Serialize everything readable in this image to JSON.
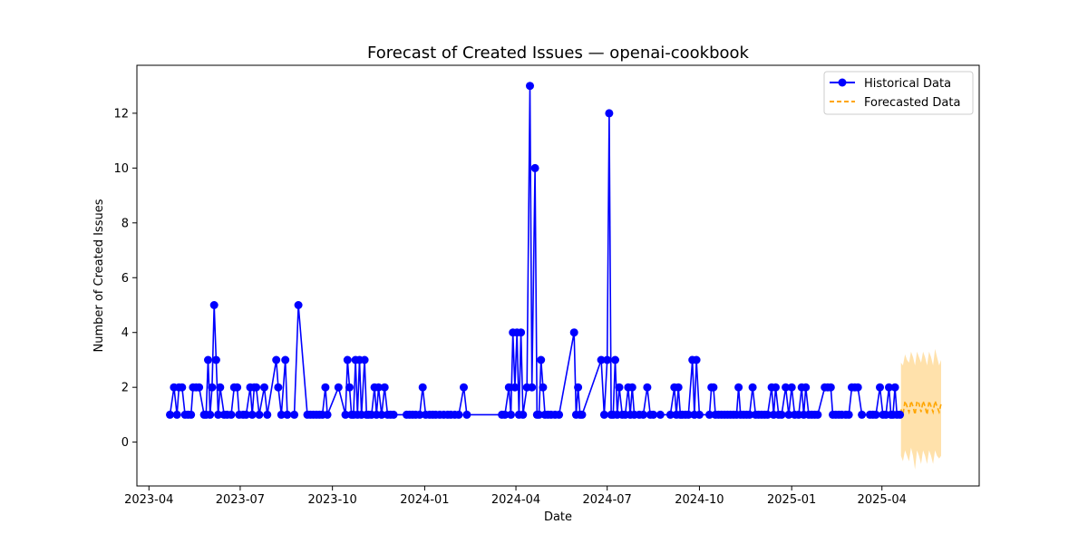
{
  "chart_data": {
    "type": "line",
    "title": "Forecast of Created Issues — openai-cookbook",
    "xlabel": "Date",
    "ylabel": "Number of Created Issues",
    "xlim": [
      "2023-03-20",
      "2025-07-07"
    ],
    "ylim": [
      -1.6,
      13.75
    ],
    "x_ticks": [
      {
        "date": "2023-04-01",
        "label": "2023-04"
      },
      {
        "date": "2023-07-01",
        "label": "2023-07"
      },
      {
        "date": "2023-10-01",
        "label": "2023-10"
      },
      {
        "date": "2024-01-01",
        "label": "2024-01"
      },
      {
        "date": "2024-04-01",
        "label": "2024-04"
      },
      {
        "date": "2024-07-01",
        "label": "2024-07"
      },
      {
        "date": "2024-10-01",
        "label": "2024-10"
      },
      {
        "date": "2025-01-01",
        "label": "2025-01"
      },
      {
        "date": "2025-04-01",
        "label": "2025-04"
      }
    ],
    "y_ticks": [
      0,
      2,
      4,
      6,
      8,
      10,
      12
    ],
    "grid": false,
    "legend": "top-right",
    "series": [
      {
        "name": "Historical Data",
        "style": "line-marker",
        "color": "#0000ff",
        "points": [
          [
            "2023-04-22",
            1
          ],
          [
            "2023-04-26",
            2
          ],
          [
            "2023-04-29",
            1
          ],
          [
            "2023-05-01",
            2
          ],
          [
            "2023-05-04",
            2
          ],
          [
            "2023-05-07",
            1
          ],
          [
            "2023-05-10",
            1
          ],
          [
            "2023-05-13",
            1
          ],
          [
            "2023-05-15",
            2
          ],
          [
            "2023-05-18",
            2
          ],
          [
            "2023-05-21",
            2
          ],
          [
            "2023-05-26",
            1
          ],
          [
            "2023-05-28",
            1
          ],
          [
            "2023-05-30",
            3
          ],
          [
            "2023-06-01",
            1
          ],
          [
            "2023-06-03",
            2
          ],
          [
            "2023-06-05",
            5
          ],
          [
            "2023-06-07",
            3
          ],
          [
            "2023-06-09",
            1
          ],
          [
            "2023-06-11",
            2
          ],
          [
            "2023-06-15",
            1
          ],
          [
            "2023-06-18",
            1
          ],
          [
            "2023-06-22",
            1
          ],
          [
            "2023-06-25",
            2
          ],
          [
            "2023-06-28",
            2
          ],
          [
            "2023-06-30",
            1
          ],
          [
            "2023-07-04",
            1
          ],
          [
            "2023-07-07",
            1
          ],
          [
            "2023-07-11",
            2
          ],
          [
            "2023-07-13",
            1
          ],
          [
            "2023-07-15",
            2
          ],
          [
            "2023-07-17",
            2
          ],
          [
            "2023-07-20",
            1
          ],
          [
            "2023-07-25",
            2
          ],
          [
            "2023-07-28",
            1
          ],
          [
            "2023-08-06",
            3
          ],
          [
            "2023-08-08",
            2
          ],
          [
            "2023-08-11",
            1
          ],
          [
            "2023-08-15",
            3
          ],
          [
            "2023-08-17",
            1
          ],
          [
            "2023-08-24",
            1
          ],
          [
            "2023-08-28",
            5
          ],
          [
            "2023-09-06",
            1
          ],
          [
            "2023-09-09",
            1
          ],
          [
            "2023-09-12",
            1
          ],
          [
            "2023-09-15",
            1
          ],
          [
            "2023-09-18",
            1
          ],
          [
            "2023-09-21",
            1
          ],
          [
            "2023-09-24",
            2
          ],
          [
            "2023-09-26",
            1
          ],
          [
            "2023-10-07",
            2
          ],
          [
            "2023-10-14",
            1
          ],
          [
            "2023-10-16",
            3
          ],
          [
            "2023-10-18",
            2
          ],
          [
            "2023-10-20",
            1
          ],
          [
            "2023-10-22",
            1
          ],
          [
            "2023-10-24",
            3
          ],
          [
            "2023-10-26",
            1
          ],
          [
            "2023-10-28",
            3
          ],
          [
            "2023-10-30",
            1
          ],
          [
            "2023-11-02",
            3
          ],
          [
            "2023-11-04",
            1
          ],
          [
            "2023-11-06",
            1
          ],
          [
            "2023-11-09",
            1
          ],
          [
            "2023-11-12",
            2
          ],
          [
            "2023-11-14",
            1
          ],
          [
            "2023-11-16",
            2
          ],
          [
            "2023-11-19",
            1
          ],
          [
            "2023-11-22",
            2
          ],
          [
            "2023-11-25",
            1
          ],
          [
            "2023-11-28",
            1
          ],
          [
            "2023-12-01",
            1
          ],
          [
            "2023-12-14",
            1
          ],
          [
            "2023-12-17",
            1
          ],
          [
            "2023-12-20",
            1
          ],
          [
            "2023-12-23",
            1
          ],
          [
            "2023-12-27",
            1
          ],
          [
            "2023-12-30",
            2
          ],
          [
            "2024-01-02",
            1
          ],
          [
            "2024-01-06",
            1
          ],
          [
            "2024-01-09",
            1
          ],
          [
            "2024-01-12",
            1
          ],
          [
            "2024-01-16",
            1
          ],
          [
            "2024-01-20",
            1
          ],
          [
            "2024-01-24",
            1
          ],
          [
            "2024-01-27",
            1
          ],
          [
            "2024-01-31",
            1
          ],
          [
            "2024-02-04",
            1
          ],
          [
            "2024-02-09",
            2
          ],
          [
            "2024-02-12",
            1
          ],
          [
            "2024-03-18",
            1
          ],
          [
            "2024-03-21",
            1
          ],
          [
            "2024-03-25",
            2
          ],
          [
            "2024-03-27",
            1
          ],
          [
            "2024-03-29",
            4
          ],
          [
            "2024-03-31",
            2
          ],
          [
            "2024-04-02",
            4
          ],
          [
            "2024-04-04",
            1
          ],
          [
            "2024-04-06",
            4
          ],
          [
            "2024-04-08",
            1
          ],
          [
            "2024-04-12",
            2
          ],
          [
            "2024-04-15",
            13
          ],
          [
            "2024-04-17",
            2
          ],
          [
            "2024-04-20",
            10
          ],
          [
            "2024-04-22",
            1
          ],
          [
            "2024-04-24",
            1
          ],
          [
            "2024-04-26",
            3
          ],
          [
            "2024-04-28",
            2
          ],
          [
            "2024-04-30",
            1
          ],
          [
            "2024-05-03",
            1
          ],
          [
            "2024-05-06",
            1
          ],
          [
            "2024-05-10",
            1
          ],
          [
            "2024-05-14",
            1
          ],
          [
            "2024-05-29",
            4
          ],
          [
            "2024-05-31",
            1
          ],
          [
            "2024-06-02",
            2
          ],
          [
            "2024-06-04",
            1
          ],
          [
            "2024-06-06",
            1
          ],
          [
            "2024-06-25",
            3
          ],
          [
            "2024-06-28",
            1
          ],
          [
            "2024-07-01",
            3
          ],
          [
            "2024-07-03",
            12
          ],
          [
            "2024-07-05",
            1
          ],
          [
            "2024-07-07",
            1
          ],
          [
            "2024-07-09",
            3
          ],
          [
            "2024-07-11",
            1
          ],
          [
            "2024-07-13",
            2
          ],
          [
            "2024-07-16",
            1
          ],
          [
            "2024-07-19",
            1
          ],
          [
            "2024-07-22",
            2
          ],
          [
            "2024-07-24",
            1
          ],
          [
            "2024-07-26",
            2
          ],
          [
            "2024-07-28",
            1
          ],
          [
            "2024-08-02",
            1
          ],
          [
            "2024-08-06",
            1
          ],
          [
            "2024-08-10",
            2
          ],
          [
            "2024-08-13",
            1
          ],
          [
            "2024-08-16",
            1
          ],
          [
            "2024-08-23",
            1
          ],
          [
            "2024-09-02",
            1
          ],
          [
            "2024-09-06",
            2
          ],
          [
            "2024-09-08",
            1
          ],
          [
            "2024-09-10",
            2
          ],
          [
            "2024-09-12",
            1
          ],
          [
            "2024-09-14",
            1
          ],
          [
            "2024-09-17",
            1
          ],
          [
            "2024-09-20",
            1
          ],
          [
            "2024-09-24",
            3
          ],
          [
            "2024-09-26",
            1
          ],
          [
            "2024-09-28",
            3
          ],
          [
            "2024-10-01",
            1
          ],
          [
            "2024-10-11",
            1
          ],
          [
            "2024-10-13",
            2
          ],
          [
            "2024-10-15",
            2
          ],
          [
            "2024-10-17",
            1
          ],
          [
            "2024-10-20",
            1
          ],
          [
            "2024-10-23",
            1
          ],
          [
            "2024-10-26",
            1
          ],
          [
            "2024-10-29",
            1
          ],
          [
            "2024-11-01",
            1
          ],
          [
            "2024-11-04",
            1
          ],
          [
            "2024-11-07",
            1
          ],
          [
            "2024-11-09",
            2
          ],
          [
            "2024-11-11",
            1
          ],
          [
            "2024-11-14",
            1
          ],
          [
            "2024-11-17",
            1
          ],
          [
            "2024-11-20",
            1
          ],
          [
            "2024-11-23",
            2
          ],
          [
            "2024-11-26",
            1
          ],
          [
            "2024-11-29",
            1
          ],
          [
            "2024-12-02",
            1
          ],
          [
            "2024-12-05",
            1
          ],
          [
            "2024-12-08",
            1
          ],
          [
            "2024-12-12",
            2
          ],
          [
            "2024-12-14",
            1
          ],
          [
            "2024-12-16",
            2
          ],
          [
            "2024-12-19",
            1
          ],
          [
            "2024-12-22",
            1
          ],
          [
            "2024-12-26",
            2
          ],
          [
            "2024-12-29",
            1
          ],
          [
            "2025-01-01",
            2
          ],
          [
            "2025-01-04",
            1
          ],
          [
            "2025-01-08",
            1
          ],
          [
            "2025-01-11",
            2
          ],
          [
            "2025-01-13",
            1
          ],
          [
            "2025-01-15",
            2
          ],
          [
            "2025-01-18",
            1
          ],
          [
            "2025-01-21",
            1
          ],
          [
            "2025-01-24",
            1
          ],
          [
            "2025-01-27",
            1
          ],
          [
            "2025-02-03",
            2
          ],
          [
            "2025-02-06",
            2
          ],
          [
            "2025-02-09",
            2
          ],
          [
            "2025-02-11",
            1
          ],
          [
            "2025-02-14",
            1
          ],
          [
            "2025-02-17",
            1
          ],
          [
            "2025-02-20",
            1
          ],
          [
            "2025-02-24",
            1
          ],
          [
            "2025-02-27",
            1
          ],
          [
            "2025-03-02",
            2
          ],
          [
            "2025-03-05",
            2
          ],
          [
            "2025-03-08",
            2
          ],
          [
            "2025-03-12",
            1
          ],
          [
            "2025-03-20",
            1
          ],
          [
            "2025-03-23",
            1
          ],
          [
            "2025-03-26",
            1
          ],
          [
            "2025-03-30",
            2
          ],
          [
            "2025-04-02",
            1
          ],
          [
            "2025-04-05",
            1
          ],
          [
            "2025-04-08",
            2
          ],
          [
            "2025-04-10",
            1
          ],
          [
            "2025-04-12",
            1
          ],
          [
            "2025-04-14",
            2
          ],
          [
            "2025-04-16",
            1
          ],
          [
            "2025-04-19",
            1
          ]
        ]
      },
      {
        "name": "Forecasted Data",
        "style": "dashed",
        "color": "#ffa500",
        "points": [
          [
            "2025-04-20",
            1.2
          ],
          [
            "2025-04-22",
            1.0
          ],
          [
            "2025-04-24",
            1.5
          ],
          [
            "2025-04-26",
            1.3
          ],
          [
            "2025-04-28",
            1.1
          ],
          [
            "2025-04-30",
            1.5
          ],
          [
            "2025-05-02",
            1.3
          ],
          [
            "2025-05-04",
            1.0
          ],
          [
            "2025-05-06",
            1.5
          ],
          [
            "2025-05-08",
            1.4
          ],
          [
            "2025-05-10",
            1.1
          ],
          [
            "2025-05-12",
            1.5
          ],
          [
            "2025-05-14",
            1.3
          ],
          [
            "2025-05-16",
            1.0
          ],
          [
            "2025-05-18",
            1.5
          ],
          [
            "2025-05-20",
            1.3
          ],
          [
            "2025-05-22",
            1.1
          ],
          [
            "2025-05-24",
            1.5
          ],
          [
            "2025-05-26",
            1.3
          ],
          [
            "2025-05-28",
            1.1
          ],
          [
            "2025-05-30",
            1.4
          ]
        ]
      }
    ],
    "confidence_band": {
      "color": "#ffa500",
      "opacity": 0.33,
      "upper": [
        [
          "2025-04-20",
          2.9
        ],
        [
          "2025-04-22",
          2.8
        ],
        [
          "2025-04-24",
          3.2
        ],
        [
          "2025-04-26",
          3.0
        ],
        [
          "2025-04-28",
          2.9
        ],
        [
          "2025-04-30",
          3.3
        ],
        [
          "2025-05-02",
          3.1
        ],
        [
          "2025-05-04",
          2.8
        ],
        [
          "2025-05-06",
          3.3
        ],
        [
          "2025-05-08",
          3.1
        ],
        [
          "2025-05-10",
          2.9
        ],
        [
          "2025-05-12",
          3.3
        ],
        [
          "2025-05-14",
          3.1
        ],
        [
          "2025-05-16",
          2.8
        ],
        [
          "2025-05-18",
          3.3
        ],
        [
          "2025-05-20",
          3.1
        ],
        [
          "2025-05-22",
          2.8
        ],
        [
          "2025-05-24",
          3.4
        ],
        [
          "2025-05-26",
          3.1
        ],
        [
          "2025-05-28",
          2.8
        ],
        [
          "2025-05-30",
          3.0
        ]
      ],
      "lower": [
        [
          "2025-04-20",
          -0.5
        ],
        [
          "2025-04-22",
          -0.7
        ],
        [
          "2025-04-24",
          -0.3
        ],
        [
          "2025-04-26",
          -0.5
        ],
        [
          "2025-04-28",
          -0.7
        ],
        [
          "2025-04-30",
          -0.2
        ],
        [
          "2025-05-02",
          -0.5
        ],
        [
          "2025-05-04",
          -1.0
        ],
        [
          "2025-05-06",
          -0.3
        ],
        [
          "2025-05-08",
          -0.5
        ],
        [
          "2025-05-10",
          -0.8
        ],
        [
          "2025-05-12",
          -0.3
        ],
        [
          "2025-05-14",
          -0.5
        ],
        [
          "2025-05-16",
          -0.8
        ],
        [
          "2025-05-18",
          -0.3
        ],
        [
          "2025-05-20",
          -0.5
        ],
        [
          "2025-05-22",
          -0.8
        ],
        [
          "2025-05-24",
          -0.3
        ],
        [
          "2025-05-26",
          -0.5
        ],
        [
          "2025-05-28",
          -0.6
        ],
        [
          "2025-05-30",
          -0.5
        ]
      ]
    }
  }
}
